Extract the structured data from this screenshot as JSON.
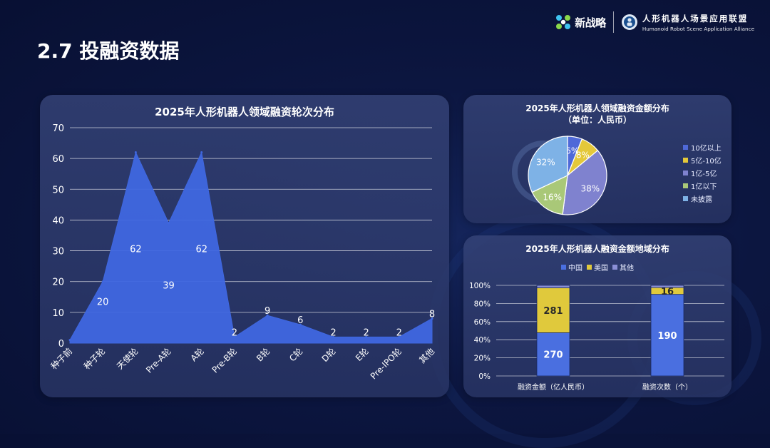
{
  "page": {
    "title": "2.7 投融资数据"
  },
  "header": {
    "brand_name": "新战略",
    "alliance_cn": "人形机器人场景应用联盟",
    "alliance_en": "Humanoid Robot Scene Application Alliance"
  },
  "colors": {
    "blue": "#4f69d8",
    "yellow": "#e4c83a",
    "slate": "#7f82cf",
    "green": "#a9c878",
    "sky": "#7eb2e6",
    "bar_blue": "#4a6fe0",
    "bar_yellow": "#e0c93c",
    "bar_purple": "#8a8fd6"
  },
  "chart_data": [
    {
      "type": "area",
      "title": "2025年人形机器人领域融资轮次分布",
      "categories": [
        "种子前",
        "种子轮",
        "天使轮",
        "Pre-A轮",
        "A轮",
        "Pre-B轮",
        "B轮",
        "C轮",
        "D轮",
        "E轮",
        "Pre-IPO轮",
        "其他"
      ],
      "values": [
        1,
        20,
        62,
        39,
        62,
        2,
        9,
        6,
        2,
        2,
        2,
        8
      ],
      "data_labels": [
        "",
        "20",
        "62",
        "39",
        "62",
        "2",
        "9",
        "6",
        "2",
        "2",
        "2",
        "8"
      ],
      "ylim": [
        0,
        70
      ],
      "yticks": [
        0,
        10,
        20,
        30,
        40,
        50,
        60,
        70
      ],
      "grid": true
    },
    {
      "type": "pie",
      "title": "2025年人形机器人领域融资金额分布",
      "subtitle": "（单位：人民币）",
      "slices": [
        {
          "name": "10亿以上",
          "value": 6,
          "label": "6%"
        },
        {
          "name": "5亿-10亿",
          "value": 8,
          "label": "8%"
        },
        {
          "name": "1亿-5亿",
          "value": 38,
          "label": "38%"
        },
        {
          "name": "1亿以下",
          "value": 16,
          "label": "16%"
        },
        {
          "name": "未披露",
          "value": 32,
          "label": "32%"
        }
      ],
      "legend_position": "right"
    },
    {
      "type": "bar",
      "stacked": "percent",
      "title": "2025年人形机器人融资金额地域分布",
      "categories": [
        "融资金额（亿人民币）",
        "融资次数（个）"
      ],
      "series": [
        {
          "name": "中国",
          "values": [
            270,
            190
          ],
          "labels": [
            "270",
            "190"
          ]
        },
        {
          "name": "美国",
          "values": [
            281,
            16
          ],
          "labels": [
            "281",
            "16"
          ]
        },
        {
          "name": "其他",
          "values": [
            15,
            5
          ],
          "labels": [
            "",
            ""
          ]
        }
      ],
      "ylim": [
        0,
        100
      ],
      "yticks": [
        "0%",
        "20%",
        "40%",
        "60%",
        "80%",
        "100%"
      ],
      "legend_position": "top"
    }
  ]
}
